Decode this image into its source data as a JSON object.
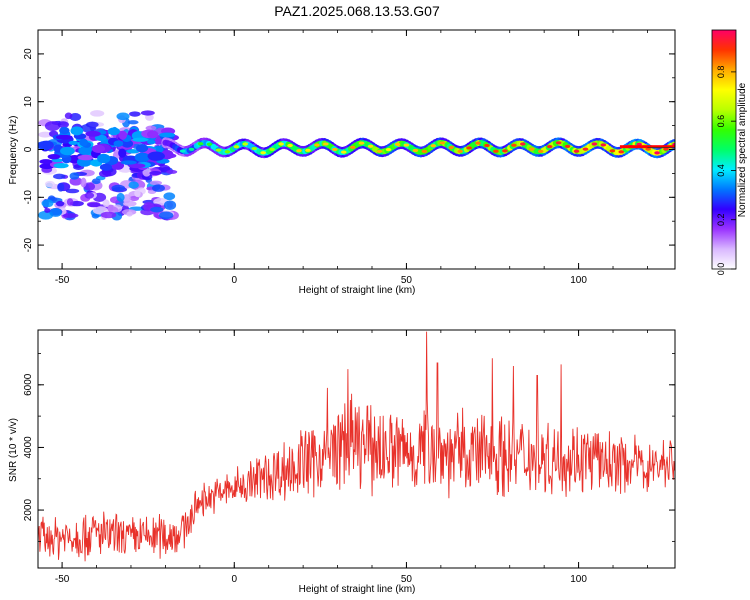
{
  "figure": {
    "title": "PAZ1.2025.068.13.53.G07"
  },
  "colors": {
    "snr_line": "#e8312a",
    "ridge": "#ff0000"
  },
  "chart_data": [
    {
      "type": "heatmap",
      "xlabel": "Height of straight line (km)",
      "ylabel": "Frequency (Hz)",
      "xlim": [
        -57,
        128
      ],
      "ylim": [
        -25,
        25
      ],
      "xticks": [
        -50,
        0,
        50,
        100
      ],
      "yticks": [
        -20,
        -10,
        0,
        10,
        20
      ],
      "colorbar": {
        "label": "Normalized spectral amplitude",
        "range": [
          0,
          0.97
        ],
        "ticks": [
          0.0,
          0.2,
          0.4,
          0.6,
          0.8
        ],
        "colormap": [
          "#ffffff",
          "#d9b8ff",
          "#9a33ff",
          "#3300ff",
          "#0077ff",
          "#00eeff",
          "#00ff66",
          "#33ff00",
          "#bbff00",
          "#ffff00",
          "#ffaa00",
          "#ff3300",
          "#ff0066"
        ]
      },
      "ridge": {
        "x": [
          -20,
          -10,
          0,
          10,
          20,
          30,
          40,
          50,
          60,
          70,
          80,
          90,
          100,
          110,
          120,
          128
        ],
        "frequency_hz": [
          0.5,
          0.5,
          0.3,
          0.2,
          0.5,
          0.3,
          0.5,
          0.3,
          0.5,
          0.5,
          0.3,
          0.5,
          0.5,
          0.3,
          0.2,
          0.2
        ],
        "amplitude": [
          0.35,
          0.55,
          0.65,
          0.7,
          0.75,
          0.78,
          0.8,
          0.82,
          0.85,
          0.86,
          0.88,
          0.9,
          0.92,
          0.94,
          0.96,
          0.97
        ]
      },
      "noise_region": {
        "x_range": [
          -55,
          -18
        ],
        "frequency_range_hz": [
          -14,
          8
        ],
        "amplitude_range": [
          0.05,
          0.35
        ]
      }
    },
    {
      "type": "line",
      "xlabel": "Height of straight line (km)",
      "ylabel": "SNR (10 * v/v)",
      "xlim": [
        -57,
        128
      ],
      "ylim": [
        150,
        7750
      ],
      "xticks": [
        -50,
        0,
        50,
        100
      ],
      "yticks": [
        2000,
        4000,
        6000
      ],
      "series": [
        {
          "x": [
            -55,
            -50,
            -45,
            -40,
            -35,
            -30,
            -25,
            -20,
            -15,
            -12,
            -10,
            -5,
            0,
            5,
            10,
            15,
            20,
            25,
            30,
            32,
            35,
            40,
            45,
            50,
            55,
            56,
            60,
            65,
            70,
            75,
            80,
            85,
            90,
            95,
            100,
            105,
            110,
            115,
            120,
            125,
            128
          ],
          "envelope": [
            1100,
            1150,
            1200,
            1250,
            1150,
            1100,
            1150,
            1200,
            1300,
            1900,
            2300,
            2500,
            2700,
            2900,
            3100,
            3300,
            3500,
            3700,
            3900,
            4200,
            4100,
            4000,
            3950,
            3900,
            3800,
            4500,
            3900,
            3800,
            3800,
            3900,
            3700,
            3800,
            3700,
            3600,
            3700,
            3600,
            3500,
            3500,
            3400,
            3500,
            3600
          ],
          "spread": [
            600,
            650,
            700,
            700,
            650,
            600,
            650,
            650,
            600,
            500,
            450,
            500,
            550,
            700,
            800,
            900,
            1000,
            1100,
            1200,
            1300,
            1300,
            1250,
            1200,
            1200,
            1200,
            1500,
            1200,
            1200,
            1200,
            1300,
            1100,
            1100,
            1000,
            1000,
            1000,
            900,
            800,
            800,
            700,
            700,
            700
          ],
          "peaks": [
            {
              "x": 33,
              "y": 6500
            },
            {
              "x": 55.8,
              "y": 7700
            },
            {
              "x": 59,
              "y": 6700
            },
            {
              "x": 75,
              "y": 6850
            },
            {
              "x": 81,
              "y": 6600
            },
            {
              "x": 88,
              "y": 6300
            },
            {
              "x": 95,
              "y": 6650
            },
            {
              "x": 27,
              "y": 5900
            }
          ]
        }
      ]
    }
  ]
}
